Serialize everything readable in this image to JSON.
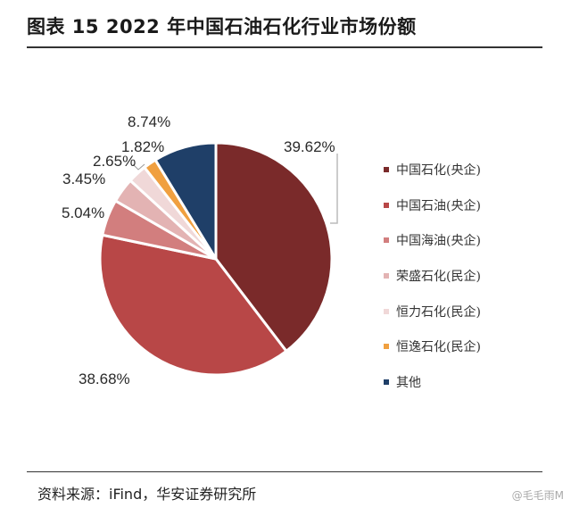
{
  "header": {
    "title": "图表 15 2022 年中国石油石化行业市场份额"
  },
  "footer": {
    "source": "资料来源：iFind，华安证券研究所",
    "watermark": "@毛毛雨M"
  },
  "chart_data": {
    "type": "pie",
    "title": "图表 15 2022 年中国石油石化行业市场份额",
    "start": "12 o'clock, clockwise",
    "slices": [
      {
        "name": "中国石化(央企)",
        "value": 39.62,
        "label": "39.62%",
        "color": "#7a2a2a"
      },
      {
        "name": "中国石油(央企)",
        "value": 38.68,
        "label": "38.68%",
        "color": "#b84747"
      },
      {
        "name": "中国海油(央企)",
        "value": 5.04,
        "label": "5.04%",
        "color": "#d27e7e"
      },
      {
        "name": "荣盛石化(民企)",
        "value": 3.45,
        "label": "3.45%",
        "color": "#e3b3b3"
      },
      {
        "name": "恒力石化(民企)",
        "value": 2.65,
        "label": "2.65%",
        "color": "#f0d8d8"
      },
      {
        "name": "恒逸石化(民企)",
        "value": 1.82,
        "label": "1.82%",
        "color": "#f0a040"
      },
      {
        "name": "其他",
        "value": 8.74,
        "label": "8.74%",
        "color": "#1f3f68"
      }
    ],
    "legend_position": "right"
  }
}
